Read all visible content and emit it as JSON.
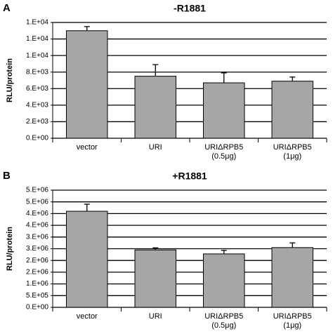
{
  "chart_data": [
    {
      "type": "bar",
      "panel": "A",
      "title": "-R1881",
      "y_label": "RLU/protein",
      "categories": [
        "vector",
        "URI",
        [
          "URIΔRPB5",
          "(0.5μg)"
        ],
        [
          "URIΔRPB5",
          "(1μg)"
        ]
      ],
      "values": [
        13000,
        7500,
        6700,
        6900
      ],
      "errors": [
        500,
        1400,
        1200,
        500
      ],
      "color": "#a6a6a6",
      "ylim": [
        0,
        14000
      ],
      "yticks": [
        {
          "value": 0,
          "label": "0.E+00"
        },
        {
          "value": 2000,
          "label": "2.E+03"
        },
        {
          "value": 4000,
          "label": "4.E+03"
        },
        {
          "value": 6000,
          "label": "6.E+03"
        },
        {
          "value": 8000,
          "label": "8.E+03"
        },
        {
          "value": 10000,
          "label": "1.E+04"
        },
        {
          "value": 12000,
          "label": "1.E+04"
        },
        {
          "value": 14000,
          "label": "1.E+04"
        }
      ],
      "grid": true
    },
    {
      "type": "bar",
      "panel": "B",
      "title": "+R1881",
      "y_label": "RLU/protein",
      "categories": [
        "vector",
        "URI",
        [
          "URIΔRPB5",
          "(0.5μg)"
        ],
        [
          "URIΔRPB5",
          "(1μg)"
        ]
      ],
      "values": [
        4100000,
        2450000,
        2280000,
        2550000
      ],
      "errors": [
        300000,
        90000,
        150000,
        200000
      ],
      "color": "#a6a6a6",
      "ylim": [
        0,
        5000000
      ],
      "yticks": [
        {
          "value": 0,
          "label": "0.E+00"
        },
        {
          "value": 500000,
          "label": "5.E+05"
        },
        {
          "value": 1000000,
          "label": "1.E+06"
        },
        {
          "value": 1500000,
          "label": "2.E+06"
        },
        {
          "value": 2000000,
          "label": "2.E+06"
        },
        {
          "value": 2500000,
          "label": "3.E+06"
        },
        {
          "value": 3000000,
          "label": "3.E+06"
        },
        {
          "value": 3500000,
          "label": "4.E+06"
        },
        {
          "value": 4000000,
          "label": "4.E+06"
        },
        {
          "value": 4500000,
          "label": "5.E+06"
        },
        {
          "value": 5000000,
          "label": "5.E+06"
        }
      ],
      "grid": true
    }
  ]
}
